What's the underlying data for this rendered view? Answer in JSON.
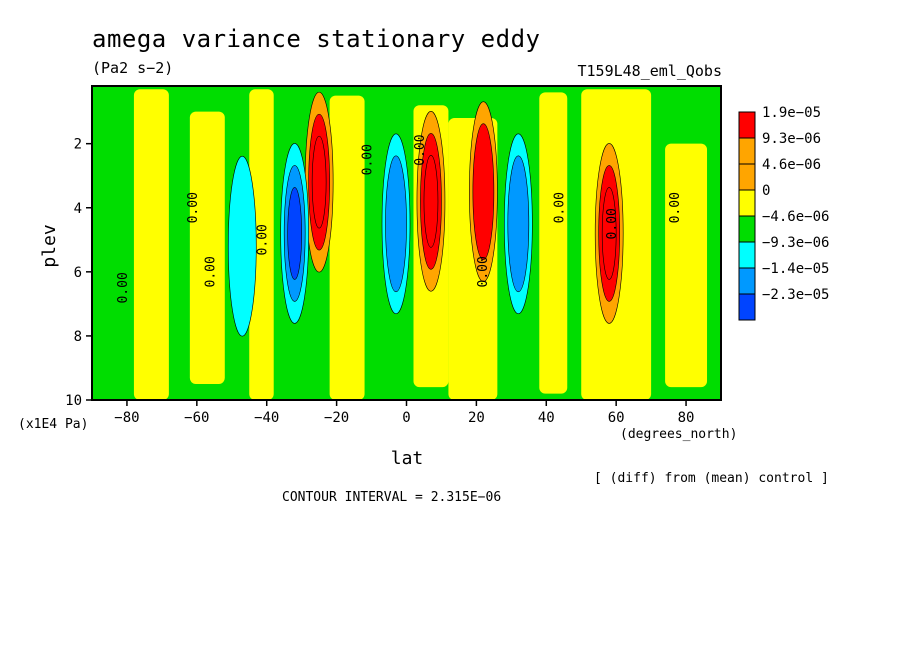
{
  "chart_data": {
    "type": "heatmap",
    "title": "amega variance stationary eddy",
    "units": "(Pa2 s−2)",
    "experiment": "T159L48_eml_Qobs",
    "xlabel": "lat",
    "xunits": "(degrees_north)",
    "ylabel": "plev",
    "yunits": "(x1E4 Pa)",
    "x_ticks": [
      -80,
      -60,
      -40,
      -20,
      0,
      20,
      40,
      60,
      80
    ],
    "x_tick_labels": [
      "−80",
      "−60",
      "−40",
      "−20",
      "0",
      "20",
      "40",
      "60",
      "80"
    ],
    "y_ticks": [
      2,
      4,
      6,
      8,
      10
    ],
    "xlim": [
      -90,
      90
    ],
    "ylim": [
      10,
      0.2
    ],
    "colorbar": {
      "levels": [
        "1.9e−05",
        "9.3e−06",
        "4.6e−06",
        "0",
        "−4.6e−06",
        "−9.3e−06",
        "−1.4e−05",
        "−2.3e−05"
      ],
      "colors": [
        "#ff0000",
        "#ffa500",
        "#ffa500",
        "#ffff00",
        "#00dd00",
        "#00ffff",
        "#0099ff",
        "#0044ff"
      ]
    },
    "contour_labels": [
      "0.00",
      "0.00",
      "0.00",
      "0.00",
      "0.00",
      "0.00",
      "0.00",
      "0.00",
      "0.00",
      "0.00"
    ],
    "note": "[ (diff) from (mean) control ]",
    "contour_interval": "CONTOUR INTERVAL = 2.315E−06",
    "features": [
      {
        "lat": -25,
        "plev": 3.2,
        "sign": "positive",
        "level": 3
      },
      {
        "lat": -32,
        "plev": 4.8,
        "sign": "negative",
        "level": 3
      },
      {
        "lat": 7,
        "plev": 3.8,
        "sign": "positive",
        "level": 3
      },
      {
        "lat": -3,
        "plev": 4.5,
        "sign": "negative",
        "level": 2
      },
      {
        "lat": 22,
        "plev": 3.5,
        "sign": "positive",
        "level": 2
      },
      {
        "lat": 32,
        "plev": 4.5,
        "sign": "negative",
        "level": 2
      },
      {
        "lat": 58,
        "plev": 4.8,
        "sign": "positive",
        "level": 3
      },
      {
        "lat": -47,
        "plev": 5.2,
        "sign": "negative",
        "level": 1
      }
    ]
  }
}
